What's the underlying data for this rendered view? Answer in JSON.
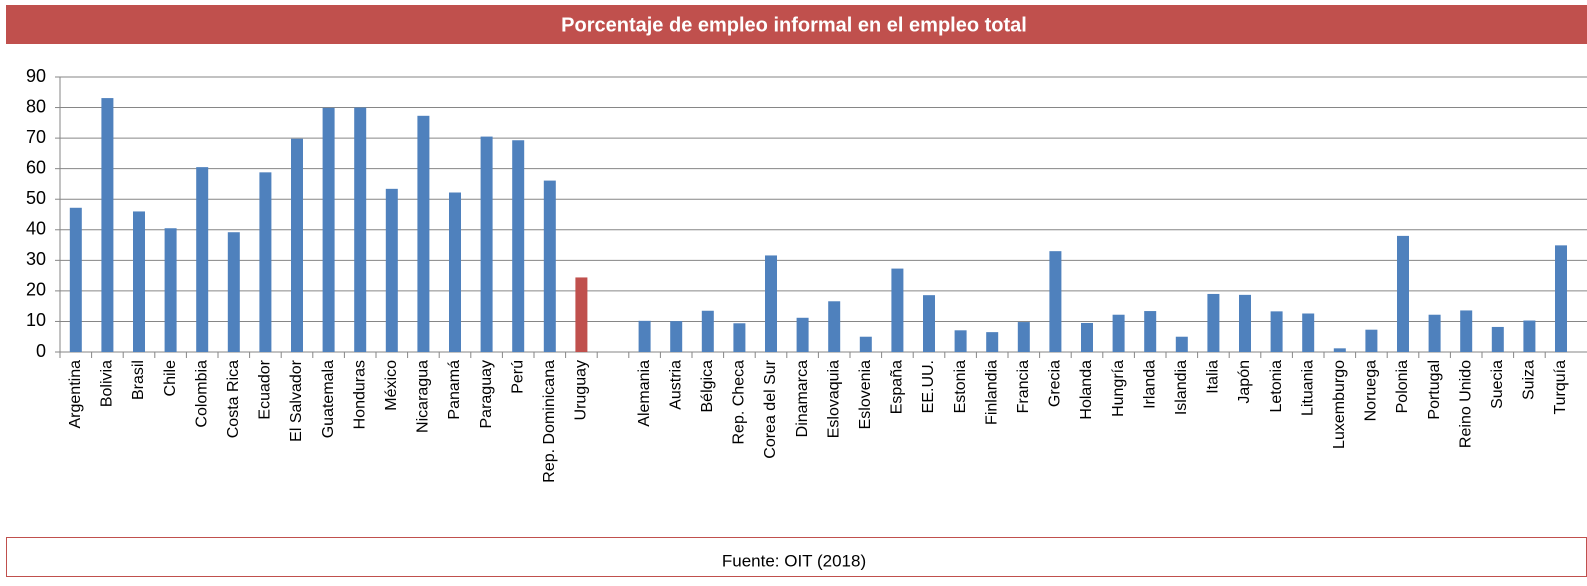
{
  "title": "Porcentaje de empleo informal en el empleo total",
  "footer": "Fuente: OIT (2018)",
  "chart_data": {
    "type": "bar",
    "categories": [
      "Argentina",
      "Bolivia",
      "Brasil",
      "Chile",
      "Colombia",
      "Costa Rica",
      "Ecuador",
      "El Salvador",
      "Guatemala",
      "Honduras",
      "México",
      "Nicaragua",
      "Panamá",
      "Paraguay",
      "Perú",
      "Rep. Dominicana",
      "Uruguay",
      null,
      "Alemania",
      "Austria",
      "Bélgica",
      "Rep. Checa",
      "Corea del Sur",
      "Dinamarca",
      "Eslovaquia",
      "Eslovenia",
      "España",
      "EE.UU.",
      "Estonia",
      "Finlandia",
      "Francia",
      "Grecia",
      "Holanda",
      "Hungría",
      "Irlanda",
      "Islandia",
      "Italia",
      "Japón",
      "Letonia",
      "Lituania",
      "Luxemburgo",
      "Noruega",
      "Polonia",
      "Portugal",
      "Reino Unido",
      "Suecia",
      "Suiza",
      "Turquía"
    ],
    "values": [
      47.2,
      83.1,
      46,
      40.5,
      60.5,
      39.2,
      58.8,
      69.8,
      79.9,
      80,
      53.4,
      77.3,
      52.2,
      70.5,
      69.3,
      56.1,
      24.4,
      null,
      10.2,
      10.1,
      13.5,
      9.4,
      31.6,
      11.2,
      16.6,
      5,
      27.3,
      18.6,
      7.1,
      6.5,
      9.8,
      33,
      9.5,
      12.2,
      13.4,
      5,
      19,
      18.7,
      13.3,
      12.6,
      1.2,
      7.3,
      38,
      12.2,
      13.6,
      8.2,
      10.3,
      34.9
    ],
    "colors": [
      "#4f81bd",
      "#4f81bd",
      "#4f81bd",
      "#4f81bd",
      "#4f81bd",
      "#4f81bd",
      "#4f81bd",
      "#4f81bd",
      "#4f81bd",
      "#4f81bd",
      "#4f81bd",
      "#4f81bd",
      "#4f81bd",
      "#4f81bd",
      "#4f81bd",
      "#4f81bd",
      "#c0504d",
      null,
      "#4f81bd",
      "#4f81bd",
      "#4f81bd",
      "#4f81bd",
      "#4f81bd",
      "#4f81bd",
      "#4f81bd",
      "#4f81bd",
      "#4f81bd",
      "#4f81bd",
      "#4f81bd",
      "#4f81bd",
      "#4f81bd",
      "#4f81bd",
      "#4f81bd",
      "#4f81bd",
      "#4f81bd",
      "#4f81bd",
      "#4f81bd",
      "#4f81bd",
      "#4f81bd",
      "#4f81bd",
      "#4f81bd",
      "#4f81bd",
      "#4f81bd",
      "#4f81bd",
      "#4f81bd",
      "#4f81bd",
      "#4f81bd",
      "#4f81bd"
    ],
    "ylim": [
      0,
      90
    ],
    "yticks": [
      0,
      10,
      20,
      30,
      40,
      50,
      60,
      70,
      80,
      90
    ],
    "grid": true
  }
}
